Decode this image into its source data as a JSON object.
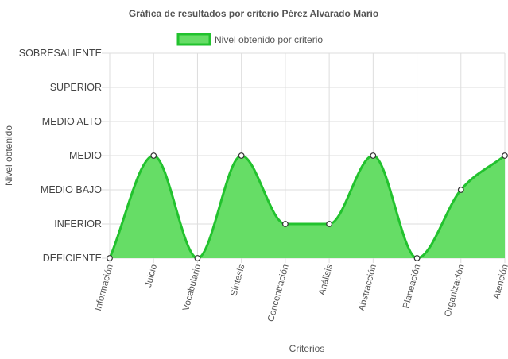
{
  "chart_data": {
    "type": "area",
    "title": "Gráfica de resultados por criterio Pérez Alvarado Mario",
    "xlabel": "Criterios",
    "ylabel": "Nivel obtenido",
    "legend": {
      "position": "top-center",
      "label": "Nivel obtenido por criterio"
    },
    "y_levels": [
      "DEFICIENTE",
      "INFERIOR",
      "MEDIO BAJO",
      "MEDIO",
      "MEDIO ALTO",
      "SUPERIOR",
      "SOBRESALIENTE"
    ],
    "ylim": [
      0,
      6
    ],
    "grid": true,
    "categories": [
      "Información",
      "Juicio",
      "Vocabulario",
      "Síntesis",
      "Concentración",
      "Análisis",
      "Abstracción",
      "Planeación",
      "Organización",
      "Atención"
    ],
    "series": [
      {
        "name": "Nivel obtenido por criterio",
        "values": [
          0,
          3,
          0,
          3,
          1,
          1,
          3,
          0,
          2,
          3
        ]
      }
    ],
    "colors": {
      "fill": "#66dd66",
      "stroke": "#22c22e",
      "point_fill": "#ffffff",
      "point_stroke": "#333333",
      "grid": "#dddddd"
    }
  }
}
